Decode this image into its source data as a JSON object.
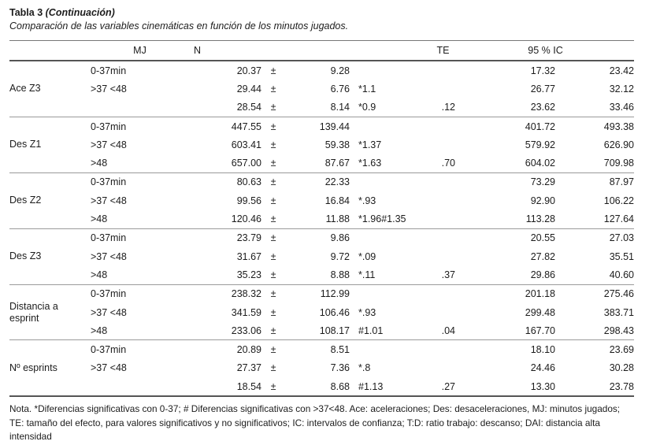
{
  "title": {
    "label": "Tabla 3",
    "continuation": "(Continuación)"
  },
  "subtitle": "Comparación de las variables cinemáticas en función de los minutos jugados.",
  "columns": {
    "mj": "MJ",
    "n": "N",
    "te": "TE",
    "ci": "95 % IC"
  },
  "plus_minus": "±",
  "table": {
    "groups": [
      {
        "variable": "Ace Z3",
        "rows": [
          {
            "mj": "0-37min",
            "mean": "20.37",
            "pm": "±",
            "sd": "9.28",
            "te1": "",
            "te2": "",
            "ci_low": "17.32",
            "ci_high": "23.42"
          },
          {
            "mj": ">37 <48",
            "mean": "29.44",
            "pm": "±",
            "sd": "6.76",
            "te1": "*1.1",
            "te2": "",
            "ci_low": "26.77",
            "ci_high": "32.12"
          },
          {
            "mj": "",
            "mean": "28.54",
            "pm": "±",
            "sd": "8.14",
            "te1": "*0.9",
            "te2": ".12",
            "ci_low": "23.62",
            "ci_high": "33.46"
          }
        ]
      },
      {
        "variable": "Des Z1",
        "rows": [
          {
            "mj": "0-37min",
            "mean": "447.55",
            "pm": "±",
            "sd": "139.44",
            "te1": "",
            "te2": "",
            "ci_low": "401.72",
            "ci_high": "493.38"
          },
          {
            "mj": ">37 <48",
            "mean": "603.41",
            "pm": "±",
            "sd": "59.38",
            "te1": "*1.37",
            "te2": "",
            "ci_low": "579.92",
            "ci_high": "626.90"
          },
          {
            "mj": ">48",
            "mean": "657.00",
            "pm": "±",
            "sd": "87.67",
            "te1": "*1.63",
            "te2": ".70",
            "ci_low": "604.02",
            "ci_high": "709.98"
          }
        ]
      },
      {
        "variable": "Des Z2",
        "rows": [
          {
            "mj": "0-37min",
            "mean": "80.63",
            "pm": "±",
            "sd": "22.33",
            "te1": "",
            "te2": "",
            "ci_low": "73.29",
            "ci_high": "87.97"
          },
          {
            "mj": ">37 <48",
            "mean": "99.56",
            "pm": "±",
            "sd": "16.84",
            "te1": "*.93",
            "te2": "",
            "ci_low": "92.90",
            "ci_high": "106.22"
          },
          {
            "mj": ">48",
            "mean": "120.46",
            "pm": "±",
            "sd": "11.88",
            "te1": "*1.96#1.35",
            "te2": "",
            "ci_low": "113.28",
            "ci_high": "127.64"
          }
        ]
      },
      {
        "variable": "Des Z3",
        "rows": [
          {
            "mj": "0-37min",
            "mean": "23.79",
            "pm": "±",
            "sd": "9.86",
            "te1": "",
            "te2": "",
            "ci_low": "20.55",
            "ci_high": "27.03"
          },
          {
            "mj": ">37 <48",
            "mean": "31.67",
            "pm": "±",
            "sd": "9.72",
            "te1": "*.09",
            "te2": "",
            "ci_low": "27.82",
            "ci_high": "35.51"
          },
          {
            "mj": ">48",
            "mean": "35.23",
            "pm": "±",
            "sd": "8.88",
            "te1": "*.11",
            "te2": ".37",
            "ci_low": "29.86",
            "ci_high": "40.60"
          }
        ]
      },
      {
        "variable": "Distancia a esprint",
        "rows": [
          {
            "mj": "0-37min",
            "mean": "238.32",
            "pm": "±",
            "sd": "112.99",
            "te1": "",
            "te2": "",
            "ci_low": "201.18",
            "ci_high": "275.46"
          },
          {
            "mj": ">37 <48",
            "mean": "341.59",
            "pm": "±",
            "sd": "106.46",
            "te1": "*.93",
            "te2": "",
            "ci_low": "299.48",
            "ci_high": "383.71"
          },
          {
            "mj": ">48",
            "mean": "233.06",
            "pm": "±",
            "sd": "108.17",
            "te1": "#1.01",
            "te2": ".04",
            "ci_low": "167.70",
            "ci_high": "298.43"
          }
        ]
      },
      {
        "variable": "Nº esprints",
        "rows": [
          {
            "mj": "0-37min",
            "mean": "20.89",
            "pm": "±",
            "sd": "8.51",
            "te1": "",
            "te2": "",
            "ci_low": "18.10",
            "ci_high": "23.69"
          },
          {
            "mj": ">37 <48",
            "mean": "27.37",
            "pm": "±",
            "sd": "7.36",
            "te1": "*.8",
            "te2": "",
            "ci_low": "24.46",
            "ci_high": "30.28"
          },
          {
            "mj": "",
            "mean": "18.54",
            "pm": "±",
            "sd": "8.68",
            "te1": "#1.13",
            "te2": ".27",
            "ci_low": "13.30",
            "ci_high": "23.78"
          }
        ]
      }
    ]
  },
  "note": "Nota. *Diferencias significativas con 0-37; # Diferencias significativas con >37<48. Ace: aceleraciones; Des: desaceleraciones, MJ: minutos jugados; TE: tamaño del efecto, para valores significativos y no significativos; IC: intervalos de confianza; T:D: ratio trabajo: descanso; DAI: distancia alta intensidad"
}
